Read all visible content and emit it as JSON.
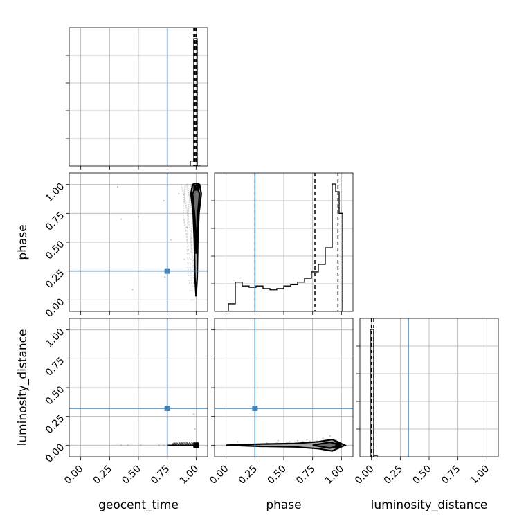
{
  "chart_data": {
    "type": "corner",
    "parameters": [
      "geocent_time",
      "phase",
      "luminosity_distance"
    ],
    "axis_labels": {
      "geocent_time": "geocent_time",
      "phase": "phase",
      "luminosity_distance": "luminosity_distance"
    },
    "tick_values": [
      0.0,
      0.25,
      0.5,
      0.75,
      1.0
    ],
    "tick_labels": [
      "0.00",
      "0.25",
      "0.50",
      "0.75",
      "1.00"
    ],
    "xlim": [
      -0.1,
      1.1
    ],
    "injection": {
      "geocent_time": 0.75,
      "phase": 0.25,
      "luminosity_distance": 0.32
    },
    "grid": true,
    "colors": {
      "truth": "#4682b4",
      "hist": "#000000",
      "grid": "#b0b0b0",
      "contour_fill": "#a8a8a8",
      "samples": "#999999"
    },
    "histograms": {
      "geocent_time": {
        "bin_edges": [
          0.95,
          0.98,
          1.01,
          1.04
        ],
        "counts": [
          0.04,
          1.0,
          0.0
        ],
        "quantiles": [
          0.98,
          0.99,
          1.0
        ]
      },
      "phase": {
        "bin_edges": [
          -0.01,
          0.02,
          0.05,
          0.08,
          0.11,
          0.14,
          0.17,
          0.2,
          0.23,
          0.26,
          0.29,
          0.32,
          0.35,
          0.38,
          0.41,
          0.44,
          0.47,
          0.5,
          0.53,
          0.56,
          0.59,
          0.62,
          0.65,
          0.68,
          0.71,
          0.74,
          0.77,
          0.8,
          0.83,
          0.86,
          0.89,
          0.92,
          0.95,
          0.98,
          1.01,
          1.04
        ],
        "counts": [
          0.0,
          0.06,
          0.06,
          0.23,
          0.23,
          0.2,
          0.2,
          0.19,
          0.19,
          0.2,
          0.2,
          0.18,
          0.18,
          0.17,
          0.17,
          0.18,
          0.18,
          0.2,
          0.2,
          0.21,
          0.21,
          0.23,
          0.23,
          0.26,
          0.26,
          0.31,
          0.31,
          0.37,
          0.37,
          0.5,
          0.5,
          1.0,
          0.94,
          0.77,
          0.0
        ],
        "quantiles": [
          0.25,
          0.77,
          0.97
        ]
      },
      "luminosity_distance": {
        "bin_edges": [
          -0.01,
          0.02,
          0.05
        ],
        "counts": [
          1.0,
          0.01
        ],
        "quantiles": [
          0.0,
          0.0,
          0.02
        ]
      }
    },
    "scatter": {
      "phase_vs_geocent_time": {
        "sparse_points": [
          [
            0.32,
            0.98
          ],
          [
            0.35,
            0.7
          ],
          [
            0.45,
            0.09
          ],
          [
            0.5,
            0.72
          ],
          [
            0.72,
            0.86
          ],
          [
            0.73,
            0.2
          ],
          [
            0.78,
            0.52
          ],
          [
            0.85,
            0.92
          ],
          [
            0.9,
            0.35
          ],
          [
            0.92,
            0.63
          ]
        ]
      },
      "luminosity_distance_vs_geocent_time": {
        "sparse_points": [
          [
            0.35,
            0.0
          ],
          [
            0.41,
            0.0
          ],
          [
            0.52,
            0.0
          ],
          [
            0.68,
            0.0
          ],
          [
            0.72,
            0.0
          ],
          [
            0.8,
            0.0
          ],
          [
            0.86,
            0.0
          ],
          [
            0.92,
            0.01
          ],
          [
            0.97,
            0.32
          ],
          [
            0.98,
            0.27
          ],
          [
            0.99,
            0.14
          ]
        ]
      },
      "luminosity_distance_vs_phase": {
        "sparse_points": [
          [
            0.1,
            0.03
          ],
          [
            0.2,
            0.01
          ],
          [
            0.35,
            0.02
          ],
          [
            0.45,
            0.04
          ],
          [
            0.55,
            0.03
          ],
          [
            0.62,
            0.04
          ],
          [
            0.7,
            0.05
          ],
          [
            0.78,
            0.03
          ],
          [
            0.84,
            0.06
          ],
          [
            0.9,
            0.08
          ],
          [
            0.96,
            0.02
          ]
        ]
      }
    }
  }
}
